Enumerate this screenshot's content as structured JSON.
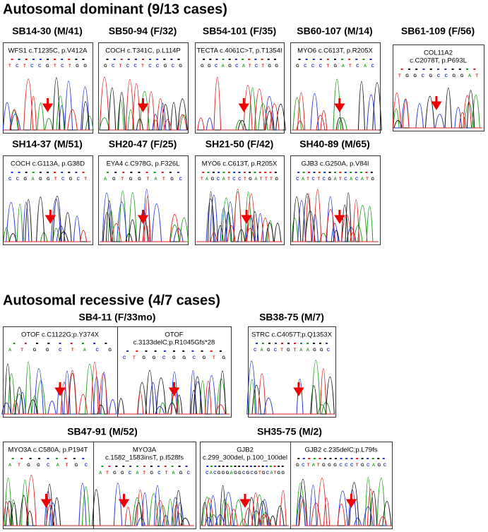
{
  "sections": [
    {
      "title": "Autosomal dominant (9/13 cases)",
      "panels": [
        {
          "title": "SB14-30 (M/41)",
          "boxes": [
            {
              "label": [
                "WFS1 c.T1235C, p.V412A"
              ],
              "sequence": "TCTCCGTCTGG"
            }
          ]
        },
        {
          "title": "SB50-94 (F/32)",
          "boxes": [
            {
              "label": [
                "COCH c.T341C, p.L114P"
              ],
              "sequence": "GCTCCTCCGCG"
            }
          ]
        },
        {
          "title": "SB54-101 (F/35)",
          "boxes": [
            {
              "label": [
                "TECTA c.4061C>T, p.T1354I"
              ],
              "sequence": "GGCAGCATCTGG"
            }
          ]
        },
        {
          "title": "SB60-107 (M/14)",
          "boxes": [
            {
              "label": [
                "MYO6 c.C613T, p.R205X"
              ],
              "sequence": "GCCCTGATCAC"
            }
          ]
        },
        {
          "title": "SB61-109 (F/56)",
          "boxes": [
            {
              "label": [
                "COL11A2",
                "c.C2078T, p.P693L"
              ],
              "sequence": "TGGCGCCGGAT"
            }
          ]
        },
        {
          "title": "SH14-37 (M/51)",
          "boxes": [
            {
              "label": [
                "COCH c.G113A, p.G38D"
              ],
              "sequence": "CCGAGGTCGCT"
            }
          ]
        },
        {
          "title": "SH20-47 (F/25)",
          "boxes": [
            {
              "label": [
                "EYA4 c.C978G, p.F326L"
              ],
              "sequence": "AGTGGTATGC"
            }
          ]
        },
        {
          "title": "SH21-50 (F/42)",
          "boxes": [
            {
              "label": [
                "MYO6 c.C613T, p.R205X"
              ],
              "sequence": "TAGCATCCTGATTTG"
            }
          ]
        },
        {
          "title": "SH40-89 (M/65)",
          "boxes": [
            {
              "label": [
                "GJB3  c.G250A, p.V84I"
              ],
              "sequence": "CATCTCGATCACATG"
            }
          ]
        }
      ]
    },
    {
      "title": "Autosomal recessive (4/7 cases)",
      "panels": [
        {
          "title": "SB4-11 (F/33mo)",
          "boxes": [
            {
              "label": [
                "OTOF c.C1122G;p.Y374X"
              ],
              "sequence": "ATGGCTACG"
            },
            {
              "label": [
                "OTOF",
                "c.3133delC;p.R1045Gfs*28"
              ],
              "sequence": "CTGGCGGCGTG"
            }
          ]
        },
        {
          "title": "SB38-75 (M/7)",
          "boxes": [
            {
              "label": [
                "STRC c.C4057T;p.Q1353X"
              ],
              "sequence": "CAGCTGTAAGGC"
            }
          ]
        },
        {
          "title": "SB47-91 (M/52)",
          "boxes": [
            {
              "label": [
                "MYO3A c.C580A, p.P194T"
              ],
              "sequence": "ATGGCATGC"
            },
            {
              "label": [
                "MYO3A",
                "c.1582_1583insT, p.I528fs"
              ],
              "sequence": "ATGGCATGCTAGC"
            }
          ]
        },
        {
          "title": "SH35-75 (M/2)",
          "boxes": [
            {
              "label": [
                "GJB2",
                "c.299_300del, p.100_100del"
              ],
              "sequence": "CACGGGAGGCGCGTGCATGG"
            },
            {
              "label": [
                "GJB2 c.235delC;p.L79fs"
              ],
              "sequence": "GCTATGGGCCCTGCAGC"
            }
          ]
        }
      ]
    }
  ]
}
